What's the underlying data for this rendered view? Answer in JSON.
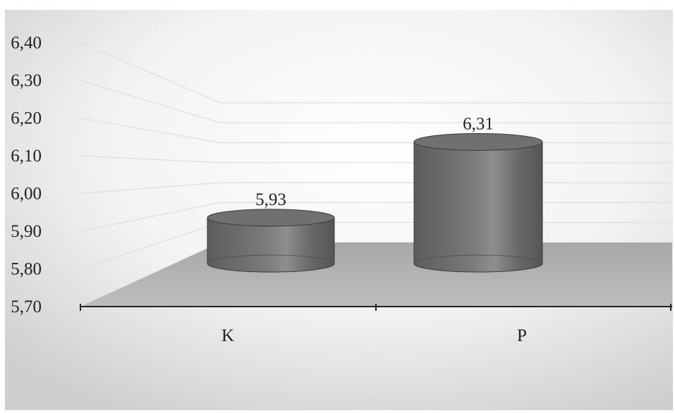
{
  "chart_data": {
    "type": "bar",
    "style": "3d-cylinder",
    "categories": [
      "K",
      "P"
    ],
    "series": [
      {
        "values": [
          5.93,
          6.31
        ],
        "data_labels": [
          "5,93",
          "6,31"
        ]
      }
    ],
    "y_ticks": [
      "5,70",
      "5,80",
      "5,90",
      "6,00",
      "6,10",
      "6,20",
      "6,30",
      "6,40"
    ],
    "ylim": [
      5.7,
      6.4
    ],
    "y_step": 0.1,
    "grid": true,
    "legend": "none",
    "colors": {
      "bar": "#6e6e6e",
      "floor": "#b4b4b4",
      "background_center": "#ffffff",
      "background_edge": "#cfcfcf"
    }
  }
}
